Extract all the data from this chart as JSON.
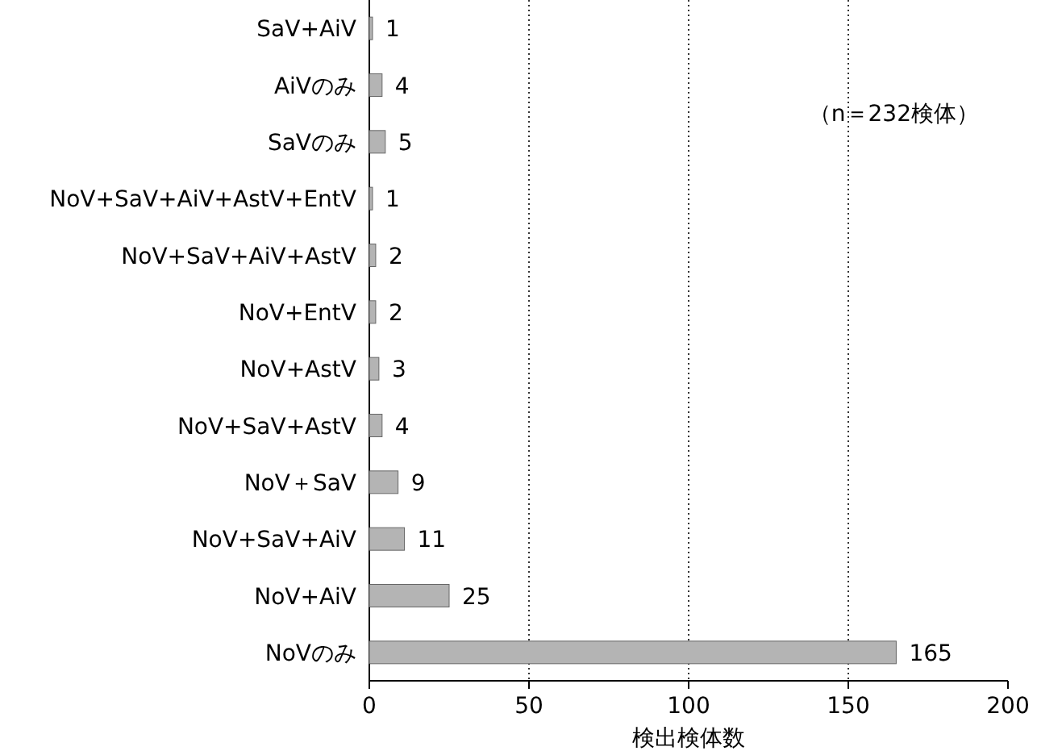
{
  "chart_data": {
    "type": "bar",
    "orientation": "horizontal",
    "categories": [
      "SaV+AiV",
      "AiVのみ",
      "SaVのみ",
      "NoV+SaV+AiV+AstV+EntV",
      "NoV+SaV+AiV+AstV",
      "NoV+EntV",
      "NoV+AstV",
      "NoV+SaV+AstV",
      "NoV＋SaV",
      "NoV+SaV+AiV",
      "NoV+AiV",
      "NoVのみ"
    ],
    "values": [
      1,
      4,
      5,
      1,
      2,
      2,
      3,
      4,
      9,
      11,
      25,
      165
    ],
    "color": "#b4b4b4",
    "xlim": [
      0,
      200
    ],
    "xticks": [
      0,
      50,
      100,
      150,
      200
    ],
    "grid": "x",
    "data_labels": true,
    "xlabel": "検出検体数",
    "annotations": [
      "（n＝232検体）"
    ]
  }
}
